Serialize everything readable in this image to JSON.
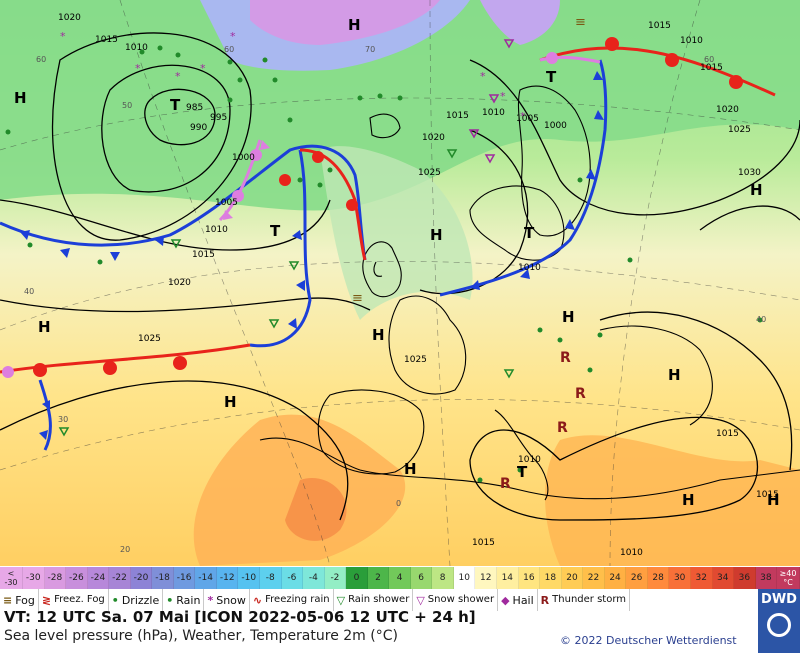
{
  "pressure_centers": {
    "H": "H",
    "T": "T"
  },
  "isobar_labels": [
    "1020",
    "1015",
    "1010",
    "995",
    "985",
    "990",
    "1000",
    "1005",
    "1010",
    "1015",
    "1020",
    "1025",
    "1030",
    "1025",
    "1020",
    "1015",
    "1010",
    "1015",
    "1015",
    "1010",
    "1010",
    "1010",
    "1005",
    "1000",
    "1025",
    "1020",
    "1025",
    "1015",
    "1015",
    "1015",
    "1010"
  ],
  "temperature_marks": [
    "60",
    "40",
    "50",
    "60",
    "70",
    "60",
    "40",
    "30",
    "20",
    "0"
  ],
  "legend": {
    "low_edge": [
      "<",
      "-30"
    ],
    "high_edge": [
      "≥40",
      "°C"
    ],
    "steps": [
      "-30",
      "-28",
      "-26",
      "-24",
      "-22",
      "-20",
      "-18",
      "-16",
      "-14",
      "-12",
      "-10",
      "-8",
      "-6",
      "-4",
      "-2",
      "0",
      "2",
      "4",
      "6",
      "8",
      "10",
      "12",
      "14",
      "16",
      "18",
      "20",
      "22",
      "24",
      "26",
      "28",
      "30",
      "32",
      "34",
      "36",
      "38"
    ],
    "colors": [
      "#e7a8e7",
      "#d99ae0",
      "#c88fdc",
      "#b788da",
      "#a785d6",
      "#8d83d6",
      "#7f8fd8",
      "#6f9ae0",
      "#60a6e8",
      "#58b4ef",
      "#56c2f0",
      "#5dd0ee",
      "#6bdde6",
      "#7ee7d9",
      "#93eec5",
      "#2a9e3a",
      "#4db64a",
      "#72c95a",
      "#98d86e",
      "#bde684",
      "#ffffff",
      "#fff7bf",
      "#ffefa0",
      "#ffe580",
      "#ffd966",
      "#ffcc55",
      "#ffbf4a",
      "#ffb043",
      "#ff9f40",
      "#ff8a3c",
      "#f87038",
      "#ef5a34",
      "#e14a31",
      "#cf3b2e",
      "#c23a5e"
    ]
  },
  "weather": [
    {
      "icon": "fog-icon",
      "label": "Fog",
      "sym": "≡",
      "color": "#7a5a14"
    },
    {
      "icon": "freezing-fog-icon",
      "label": "Freez. Fog",
      "sym": "≷",
      "color": "#c8241c"
    },
    {
      "icon": "drizzle-icon",
      "label": "Drizzle",
      "sym": "•",
      "color": "#218a2a"
    },
    {
      "icon": "rain-icon",
      "label": "Rain",
      "sym": "•",
      "color": "#218a2a"
    },
    {
      "icon": "snow-icon",
      "label": "Snow",
      "sym": "*",
      "color": "#a02a9e"
    },
    {
      "icon": "freezing-rain-icon",
      "label": "Freezing rain",
      "sym": "∿",
      "color": "#c8241c"
    },
    {
      "icon": "rain-shower-icon",
      "label": "Rain shower",
      "sym": "▽",
      "color": "#218a2a"
    },
    {
      "icon": "snow-shower-icon",
      "label": "Snow shower",
      "sym": "▽",
      "color": "#a02a9e"
    },
    {
      "icon": "hail-icon",
      "label": "Hail",
      "sym": "◆",
      "color": "#a02a9e"
    },
    {
      "icon": "thunderstorm-icon",
      "label": "Thunder storm",
      "sym": "R",
      "color": "#8b1a1a"
    }
  ],
  "info": {
    "vt": "VT: 12 UTC Sa.  07 Mai [ICON 2022-05-06  12 UTC + 24 h]",
    "subtitle": "Sea level pressure (hPa), Weather, Temperature 2m (°C)",
    "copyright": "© 2022 Deutscher Wetterdienst",
    "logo": "DWD"
  },
  "colors": {
    "warm_front": "#e8231b",
    "cold_front": "#1c3fd8",
    "occluded_front": "#dd7ee0",
    "isobar": "#000000"
  }
}
